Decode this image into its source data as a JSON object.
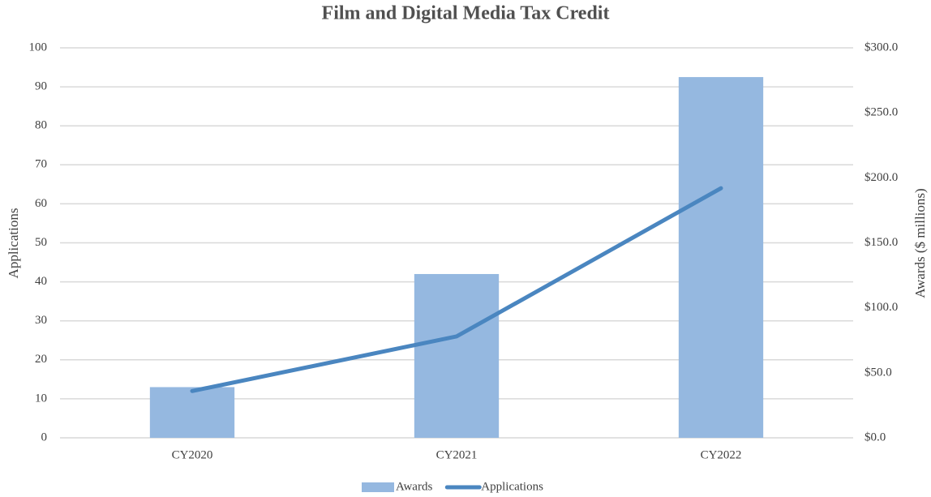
{
  "chart_data": {
    "type": "bar",
    "title": "Film and Digital Media Tax Credit",
    "y_label": "Applications",
    "y2_label": "Awards ($ millions)",
    "categories": [
      "CY2020",
      "CY2021",
      "CY2022"
    ],
    "series": [
      {
        "name": "Awards",
        "type": "bar",
        "axis": "y2",
        "color": "#95b8e0",
        "values": [
          39,
          126,
          277.5
        ]
      },
      {
        "name": "Applications",
        "type": "line",
        "axis": "y",
        "color": "#4a86c0",
        "values": [
          12,
          26,
          64
        ]
      }
    ],
    "ylim": [
      0,
      100
    ],
    "yticks": [
      0,
      10,
      20,
      30,
      40,
      50,
      60,
      70,
      80,
      90,
      100
    ],
    "y2lim": [
      0,
      300
    ],
    "y2ticks": [
      {
        "value": 0,
        "label": "$0.0"
      },
      {
        "value": 50,
        "label": "$50.0"
      },
      {
        "value": 100,
        "label": "$100.0"
      },
      {
        "value": 150,
        "label": "$150.0"
      },
      {
        "value": 200,
        "label": "$200.0"
      },
      {
        "value": 250,
        "label": "$250.0"
      },
      {
        "value": 300,
        "label": "$300.0"
      }
    ],
    "grid": true,
    "legend": "bottom"
  }
}
